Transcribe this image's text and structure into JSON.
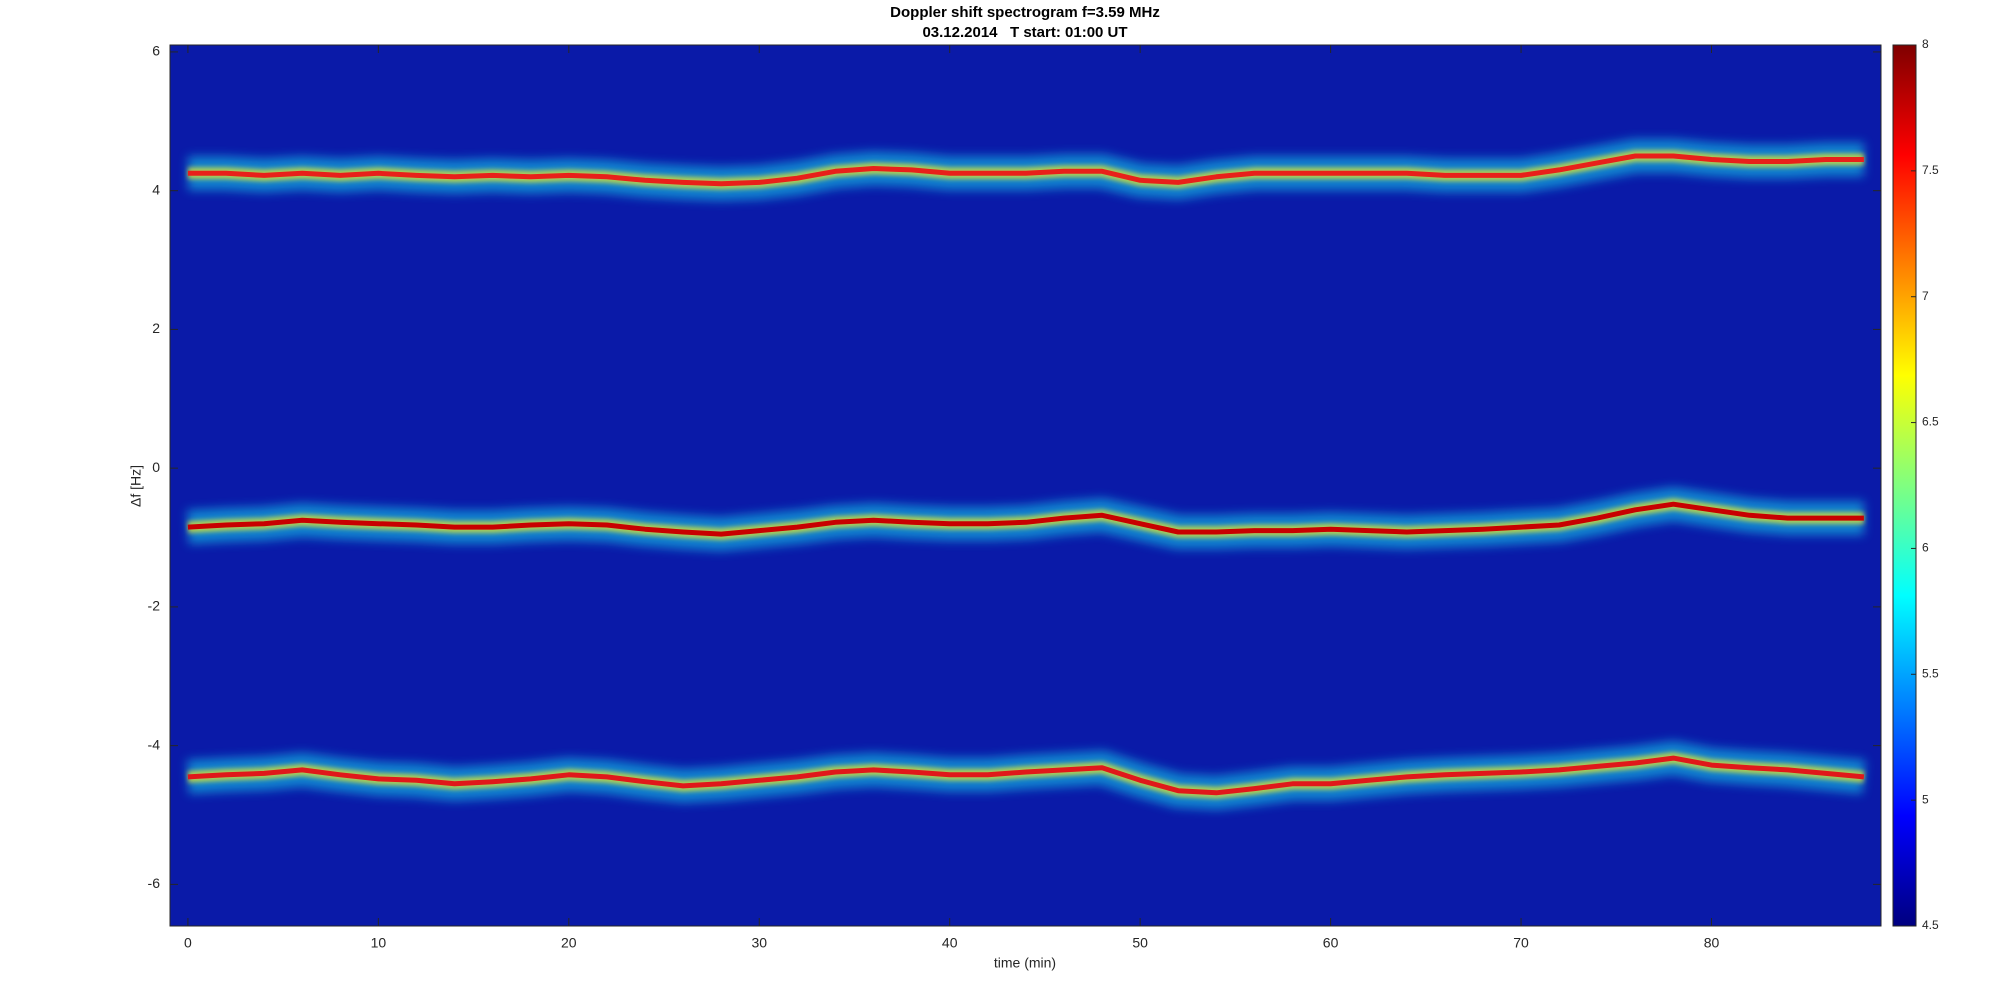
{
  "chart_data": {
    "type": "spectrogram",
    "title": "Doppler shift spectrogram f=3.59 MHz",
    "subtitle": "03.12.2014   T start: 01:00 UT",
    "xlabel": "time (min)",
    "ylabel": "Δf [Hz]",
    "xlim": [
      -0.94,
      88.9
    ],
    "ylim": [
      -6.6,
      6.1
    ],
    "xticks": [
      0,
      10,
      20,
      30,
      40,
      50,
      60,
      70,
      80
    ],
    "yticks": [
      -6,
      -4,
      -2,
      0,
      2,
      4,
      6
    ],
    "colormap": "jet",
    "clim": [
      4.5,
      8
    ],
    "cticks": [
      4.5,
      5,
      5.5,
      6,
      6.5,
      7,
      7.5,
      8
    ],
    "x": [
      0,
      2,
      4,
      6,
      8,
      10,
      12,
      14,
      16,
      18,
      20,
      22,
      24,
      26,
      28,
      30,
      32,
      34,
      36,
      38,
      40,
      42,
      44,
      46,
      48,
      50,
      52,
      54,
      56,
      58,
      60,
      62,
      64,
      66,
      68,
      70,
      72,
      74,
      76,
      78,
      80,
      82,
      84,
      86,
      88
    ],
    "series": [
      {
        "color": "#e8201a",
        "values": [
          4.25,
          4.25,
          4.22,
          4.25,
          4.22,
          4.25,
          4.22,
          4.2,
          4.22,
          4.2,
          4.22,
          4.2,
          4.15,
          4.12,
          4.1,
          4.12,
          4.18,
          4.28,
          4.32,
          4.3,
          4.25,
          4.25,
          4.25,
          4.28,
          4.28,
          4.15,
          4.12,
          4.2,
          4.25,
          4.25,
          4.25,
          4.25,
          4.25,
          4.22,
          4.22,
          4.22,
          4.3,
          4.4,
          4.5,
          4.5,
          4.45,
          4.42,
          4.42,
          4.45,
          4.45
        ]
      },
      {
        "color": "#c80000",
        "values": [
          -0.85,
          -0.82,
          -0.8,
          -0.75,
          -0.78,
          -0.8,
          -0.82,
          -0.85,
          -0.85,
          -0.82,
          -0.8,
          -0.82,
          -0.88,
          -0.92,
          -0.95,
          -0.9,
          -0.85,
          -0.78,
          -0.75,
          -0.78,
          -0.8,
          -0.8,
          -0.78,
          -0.72,
          -0.68,
          -0.8,
          -0.92,
          -0.92,
          -0.9,
          -0.9,
          -0.88,
          -0.9,
          -0.92,
          -0.9,
          -0.88,
          -0.85,
          -0.82,
          -0.72,
          -0.6,
          -0.52,
          -0.6,
          -0.68,
          -0.72,
          -0.72,
          -0.72
        ]
      },
      {
        "color": "#e0181a",
        "values": [
          -4.45,
          -4.42,
          -4.4,
          -4.35,
          -4.42,
          -4.48,
          -4.5,
          -4.55,
          -4.52,
          -4.48,
          -4.42,
          -4.45,
          -4.52,
          -4.58,
          -4.55,
          -4.5,
          -4.45,
          -4.38,
          -4.35,
          -4.38,
          -4.42,
          -4.42,
          -4.38,
          -4.35,
          -4.32,
          -4.5,
          -4.65,
          -4.68,
          -4.62,
          -4.55,
          -4.55,
          -4.5,
          -4.45,
          -4.42,
          -4.4,
          -4.38,
          -4.35,
          -4.3,
          -4.25,
          -4.18,
          -4.28,
          -4.32,
          -4.35,
          -4.4,
          -4.45
        ]
      }
    ]
  }
}
